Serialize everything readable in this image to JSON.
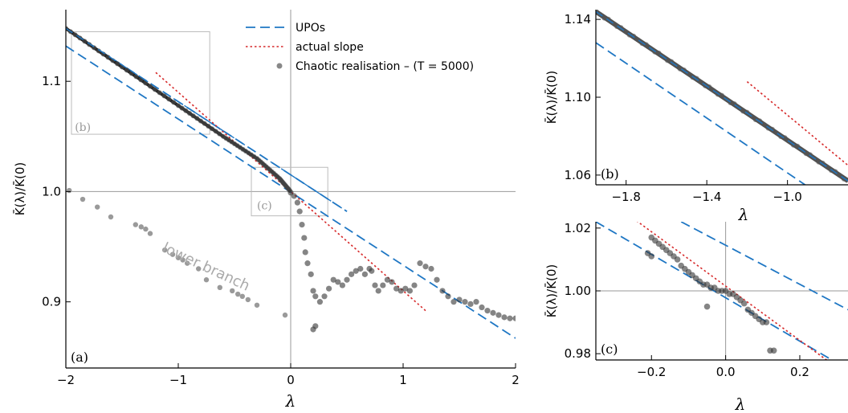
{
  "chart_data": [
    {
      "panel": "a",
      "type": "scatter",
      "xlabel": "λ",
      "ylabel": "K̄(λ)/K̄(0)",
      "xlim": [
        -2,
        2
      ],
      "ylim": [
        0.84,
        1.165
      ],
      "xticks": [
        "−2",
        "−1",
        "0",
        "1",
        "2"
      ],
      "yticks": [
        "0.9",
        "1.0",
        "1.1"
      ],
      "panel_label": "(a)",
      "inset_labels": [
        "(b)",
        "(c)"
      ],
      "annotation": "lower branch",
      "legend": {
        "position": "top-center",
        "entries": [
          {
            "label": "UPOs",
            "style": "dashed",
            "color": "#1f77c4"
          },
          {
            "label": "actual slope",
            "style": "dotted",
            "color": "#d62728"
          },
          {
            "label": "Chaotic realisation  – (T = 5000)",
            "style": "marker",
            "color": "#555555"
          }
        ]
      },
      "upos_lines": [
        {
          "x": [
            -2.0,
            0.5
          ],
          "y": [
            1.148,
            0.982
          ]
        },
        {
          "x": [
            -2.0,
            2.0
          ],
          "y": [
            1.132,
            0.867
          ]
        }
      ],
      "actual_slope": {
        "x": [
          -1.2,
          1.2
        ],
        "y": [
          1.108,
          0.892
        ]
      },
      "main_curve": {
        "x": [
          -2.0,
          -1.5,
          -1.0,
          -0.6,
          -0.3,
          -0.1,
          0.0
        ],
        "y": [
          1.148,
          1.113,
          1.078,
          1.05,
          1.03,
          1.012,
          1.0
        ]
      },
      "lower_branch": {
        "x": [
          -1.97,
          -1.85,
          -1.72,
          -1.6,
          -1.38,
          -1.33,
          -1.29,
          -1.25,
          -1.12,
          -1.05,
          -1.0,
          -0.96,
          -0.92,
          -0.82,
          -0.75,
          -0.63,
          -0.52,
          -0.47,
          -0.43,
          -0.38,
          -0.3,
          -0.05
        ],
        "y": [
          1.001,
          0.993,
          0.986,
          0.977,
          0.97,
          0.968,
          0.966,
          0.962,
          0.947,
          0.943,
          0.94,
          0.938,
          0.935,
          0.93,
          0.92,
          0.913,
          0.91,
          0.907,
          0.905,
          0.902,
          0.897,
          0.888
        ]
      },
      "chaotic_points": {
        "x": [
          0.0,
          0.03,
          0.06,
          0.08,
          0.1,
          0.12,
          0.13,
          0.15,
          0.18,
          0.2,
          0.22,
          0.26,
          0.3,
          0.34,
          0.38,
          0.42,
          0.46,
          0.5,
          0.54,
          0.58,
          0.62,
          0.66,
          0.7,
          0.72,
          0.75,
          0.78,
          0.82,
          0.86,
          0.9,
          0.94,
          0.98,
          1.02,
          1.06,
          1.1,
          1.15,
          1.2,
          1.25,
          1.3,
          1.35,
          1.4,
          1.45,
          1.5,
          1.55,
          1.6,
          1.65,
          1.7,
          1.75,
          1.8,
          1.85,
          1.9,
          1.95,
          2.0,
          0.2,
          0.22
        ],
        "y": [
          0.999,
          0.996,
          0.99,
          0.982,
          0.97,
          0.958,
          0.945,
          0.935,
          0.925,
          0.91,
          0.905,
          0.9,
          0.905,
          0.912,
          0.92,
          0.918,
          0.915,
          0.92,
          0.925,
          0.928,
          0.93,
          0.925,
          0.93,
          0.928,
          0.915,
          0.91,
          0.915,
          0.92,
          0.918,
          0.912,
          0.91,
          0.912,
          0.91,
          0.915,
          0.935,
          0.932,
          0.93,
          0.92,
          0.91,
          0.905,
          0.9,
          0.902,
          0.9,
          0.898,
          0.9,
          0.895,
          0.892,
          0.89,
          0.888,
          0.886,
          0.885,
          0.885,
          0.875,
          0.878
        ]
      }
    },
    {
      "panel": "b",
      "type": "line",
      "xlabel": "λ",
      "ylabel": "K̄(λ)/K̄(0)",
      "xlim": [
        -1.95,
        -0.7
      ],
      "ylim": [
        1.055,
        1.145
      ],
      "xticks": [
        "−1.8",
        "−1.4",
        "−1.0"
      ],
      "yticks": [
        "1.06",
        "1.10",
        "1.14"
      ],
      "panel_label": "(b)",
      "main_curve": {
        "x": [
          -1.95,
          -0.7
        ],
        "y": [
          1.144,
          1.057
        ]
      },
      "upos_lower": {
        "x": [
          -1.95,
          -0.7
        ],
        "y": [
          1.128,
          1.04
        ]
      },
      "actual_slope": {
        "x": [
          -1.2,
          -0.7
        ],
        "y": [
          1.108,
          1.065
        ]
      }
    },
    {
      "panel": "c",
      "type": "scatter",
      "xlabel": "λ",
      "ylabel": "K̄(λ)/K̄(0)",
      "xlim": [
        -0.35,
        0.33
      ],
      "ylim": [
        0.978,
        1.022
      ],
      "xticks": [
        "−0.2",
        "0.0",
        "0.2"
      ],
      "yticks": [
        "0.98",
        "1.00",
        "1.02"
      ],
      "panel_label": "(c)",
      "upos_lines": [
        {
          "x": [
            -0.35,
            0.33
          ],
          "y": [
            1.022,
            0.975
          ]
        },
        {
          "x": [
            -0.12,
            0.33
          ],
          "y": [
            1.022,
            0.994
          ]
        }
      ],
      "actual_slope": {
        "x": [
          -0.26,
          0.33
        ],
        "y": [
          1.024,
          0.973
        ]
      },
      "chaotic_points": {
        "x": [
          -0.2,
          -0.19,
          -0.18,
          -0.17,
          -0.16,
          -0.15,
          -0.14,
          -0.13,
          -0.12,
          -0.11,
          -0.1,
          -0.09,
          -0.08,
          -0.07,
          -0.06,
          -0.05,
          -0.04,
          -0.03,
          -0.02,
          -0.01,
          0.0,
          0.01,
          0.02,
          0.03,
          0.04,
          0.05,
          0.06,
          0.07,
          0.08,
          0.09,
          0.1,
          0.11,
          -0.21,
          -0.2,
          -0.05,
          0.12,
          0.13
        ],
        "y": [
          1.017,
          1.016,
          1.015,
          1.014,
          1.013,
          1.012,
          1.011,
          1.01,
          1.008,
          1.007,
          1.006,
          1.005,
          1.004,
          1.003,
          1.002,
          1.002,
          1.001,
          1.001,
          1.0,
          1.0,
          1.0,
          0.999,
          0.999,
          0.998,
          0.997,
          0.996,
          0.994,
          0.993,
          0.992,
          0.991,
          0.99,
          0.99,
          1.012,
          1.011,
          0.995,
          0.981,
          0.981
        ]
      }
    }
  ]
}
